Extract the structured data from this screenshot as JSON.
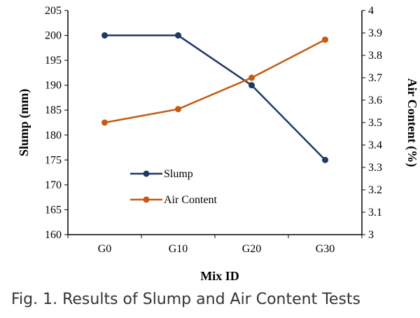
{
  "caption": "Fig. 1. Results of Slump and Air Content Tests",
  "chart_data": {
    "type": "line",
    "categories": [
      "G0",
      "G10",
      "G20",
      "G30"
    ],
    "xlabel": "Mix ID",
    "ylabel": "Slump (mm)",
    "y2label": "Air Content (%)",
    "ylim": [
      160,
      205
    ],
    "yticks": [
      160,
      165,
      170,
      175,
      180,
      185,
      190,
      195,
      200,
      205
    ],
    "y2lim": [
      3,
      4
    ],
    "y2ticks": [
      "3",
      "3.1",
      "3.2",
      "3.3",
      "3.4",
      "3.5",
      "3.6",
      "3.7",
      "3.8",
      "3.9",
      "4"
    ],
    "grid": false,
    "legend_position": "lower-left",
    "series": [
      {
        "name": "Slump",
        "axis": "left",
        "color": "#1f3864",
        "values": [
          200,
          200,
          190,
          175
        ]
      },
      {
        "name": "Air Content",
        "axis": "right",
        "color": "#c55a11",
        "values": [
          3.5,
          3.56,
          3.7,
          3.87
        ]
      }
    ]
  }
}
